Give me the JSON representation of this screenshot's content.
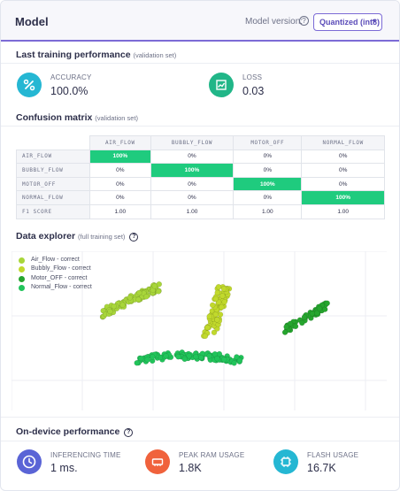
{
  "header": {
    "title": "Model",
    "version_label": "Model version:",
    "version_value": "Quantized (int8)"
  },
  "training": {
    "title": "Last training performance",
    "subtitle": "(validation set)",
    "accuracy": {
      "label": "ACCURACY",
      "value": "100.0%",
      "icon": "percent-icon",
      "color": "#25b7d3"
    },
    "loss": {
      "label": "LOSS",
      "value": "0.03",
      "icon": "trending-chart-icon",
      "color": "#21b688"
    }
  },
  "confusion": {
    "title": "Confusion matrix",
    "subtitle": "(validation set)",
    "columns": [
      "AIR_FLOW",
      "BUBBLY_FLOW",
      "MOTOR_OFF",
      "NORMAL_FLOW"
    ],
    "rows": [
      {
        "label": "AIR_FLOW",
        "cells": [
          "100%",
          "0%",
          "0%",
          "0%"
        ]
      },
      {
        "label": "BUBBLY_FLOW",
        "cells": [
          "0%",
          "100%",
          "0%",
          "0%"
        ]
      },
      {
        "label": "MOTOR_OFF",
        "cells": [
          "0%",
          "0%",
          "100%",
          "0%"
        ]
      },
      {
        "label": "NORMAL_FLOW",
        "cells": [
          "0%",
          "0%",
          "0%",
          "100%"
        ]
      }
    ],
    "f1": {
      "label": "F1 SCORE",
      "cells": [
        "1.00",
        "1.00",
        "1.00",
        "1.00"
      ]
    },
    "highlight_color": "#1fcb7e"
  },
  "explorer": {
    "title": "Data explorer",
    "subtitle": "(full training set)",
    "legend": [
      {
        "label": "Air_Flow - correct",
        "color": "#a8d63a"
      },
      {
        "label": "Bubbly_Flow - correct",
        "color": "#c1d92c"
      },
      {
        "label": "Motor_OFF - correct",
        "color": "#26a52e"
      },
      {
        "label": "Normal_Flow - correct",
        "color": "#21c45a"
      }
    ]
  },
  "chart_data": {
    "type": "scatter",
    "series": [
      {
        "name": "Air_Flow - correct",
        "color": "#a8d63a",
        "center": [
          135,
          55
        ],
        "spread": [
          32,
          15
        ],
        "count": 90
      },
      {
        "name": "Bubbly_Flow - correct",
        "color": "#c1d92c",
        "center": [
          232,
          68
        ],
        "spread": [
          16,
          28
        ],
        "count": 80
      },
      {
        "name": "Motor_OFF - correct",
        "color": "#26a52e",
        "center": [
          333,
          75
        ],
        "spread": [
          24,
          14
        ],
        "count": 55
      },
      {
        "name": "Normal_Flow - correct",
        "color": "#21c45a",
        "center": [
          200,
          124
        ],
        "spread": [
          60,
          8
        ],
        "count": 110
      }
    ]
  },
  "device": {
    "title": "On-device performance",
    "inferencing": {
      "label": "INFERENCING TIME",
      "value": "1 ms.",
      "icon": "clock-icon",
      "color": "#5a64d6"
    },
    "ram": {
      "label": "PEAK RAM USAGE",
      "value": "1.8K",
      "icon": "memory-icon",
      "color": "#f0623c"
    },
    "flash": {
      "label": "FLASH USAGE",
      "value": "16.7K",
      "icon": "chip-icon",
      "color": "#25b7d3"
    }
  }
}
